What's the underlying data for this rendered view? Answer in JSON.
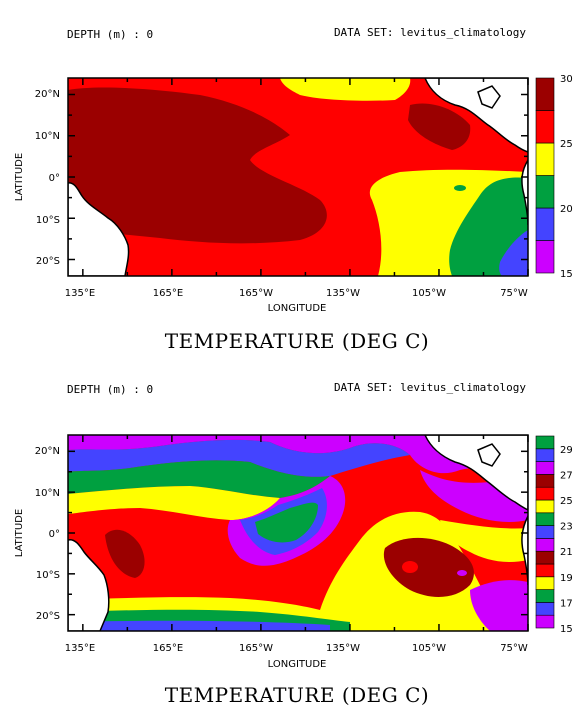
{
  "chart_data": [
    {
      "type": "heatmap",
      "title": "TEMPERATURE (DEG C)",
      "header_left": "DEPTH (m) : 0",
      "header_right": "DATA SET: levitus_climatology",
      "xlabel": "LONGITUDE",
      "ylabel": "LATITUDE",
      "x_ticks": [
        "135°E",
        "165°E",
        "165°W",
        "135°W",
        "105°W",
        "75°W"
      ],
      "y_ticks": [
        "20°N",
        "10°N",
        "0°",
        "10°S",
        "20°S"
      ],
      "colorbar": {
        "levels": [
          15,
          17.5,
          20,
          22.5,
          25,
          27.5,
          30
        ],
        "labels": [
          "15",
          "20",
          "25",
          "30"
        ],
        "colors": [
          "#cc00ff",
          "#4444ff",
          "#00a040",
          "#ffff00",
          "#ff0000",
          "#9b0000"
        ]
      }
    },
    {
      "type": "heatmap",
      "title": "TEMPERATURE (DEG C)",
      "header_left": "DEPTH (m) : 0",
      "header_right": "DATA SET: levitus_climatology",
      "xlabel": "LONGITUDE",
      "ylabel": "LATITUDE",
      "x_ticks": [
        "135°E",
        "165°E",
        "165°W",
        "135°W",
        "105°W",
        "75°W"
      ],
      "y_ticks": [
        "20°N",
        "10°N",
        "0°",
        "10°S",
        "20°S"
      ],
      "colorbar": {
        "levels": [
          15,
          16,
          17,
          18,
          19,
          20,
          21,
          22,
          23,
          24,
          25,
          26,
          27,
          28,
          29,
          30
        ],
        "labels": [
          "15",
          "17",
          "19",
          "21",
          "23",
          "25",
          "27",
          "29"
        ],
        "colors": [
          "#cc00ff",
          "#4444ff",
          "#00a040",
          "#ffff00",
          "#ff0000",
          "#9b0000",
          "#cc00ff",
          "#4444ff",
          "#00a040",
          "#ffff00",
          "#ff0000",
          "#9b0000",
          "#cc00ff",
          "#4444ff",
          "#00a040"
        ]
      }
    }
  ]
}
